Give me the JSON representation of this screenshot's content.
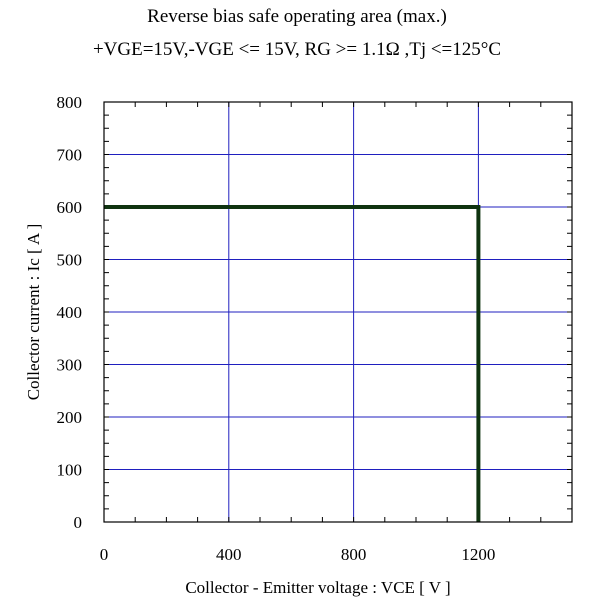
{
  "chart_data": {
    "type": "line",
    "title": "Reverse bias safe operating area (max.)",
    "subtitle": "+VGE=15V,-VGE <= 15V, RG >= 1.1Ω ,Tj <=125°C",
    "xlabel": "Collector - Emitter voltage  :  VCE  [ V ]",
    "ylabel": "Collector current  : Ic  [ A ]",
    "xlim": [
      0,
      1500
    ],
    "ylim": [
      0,
      800
    ],
    "x_ticks": [
      0,
      400,
      800,
      1200
    ],
    "x_tick_labels": [
      "0",
      "400",
      "800",
      "1200"
    ],
    "x_minor_step": 100,
    "y_ticks": [
      0,
      100,
      200,
      300,
      400,
      500,
      600,
      700,
      800
    ],
    "y_tick_labels": [
      "0",
      "100",
      "200",
      "300",
      "400",
      "500",
      "600",
      "700",
      "800"
    ],
    "y_minor_step": 25,
    "grid": true,
    "colors": {
      "grid": "#1f1fbf",
      "series": "#0f3310",
      "frame": "#000000"
    },
    "series": [
      {
        "x": [
          0,
          1200,
          1200
        ],
        "y": [
          600,
          600,
          0
        ]
      }
    ]
  }
}
